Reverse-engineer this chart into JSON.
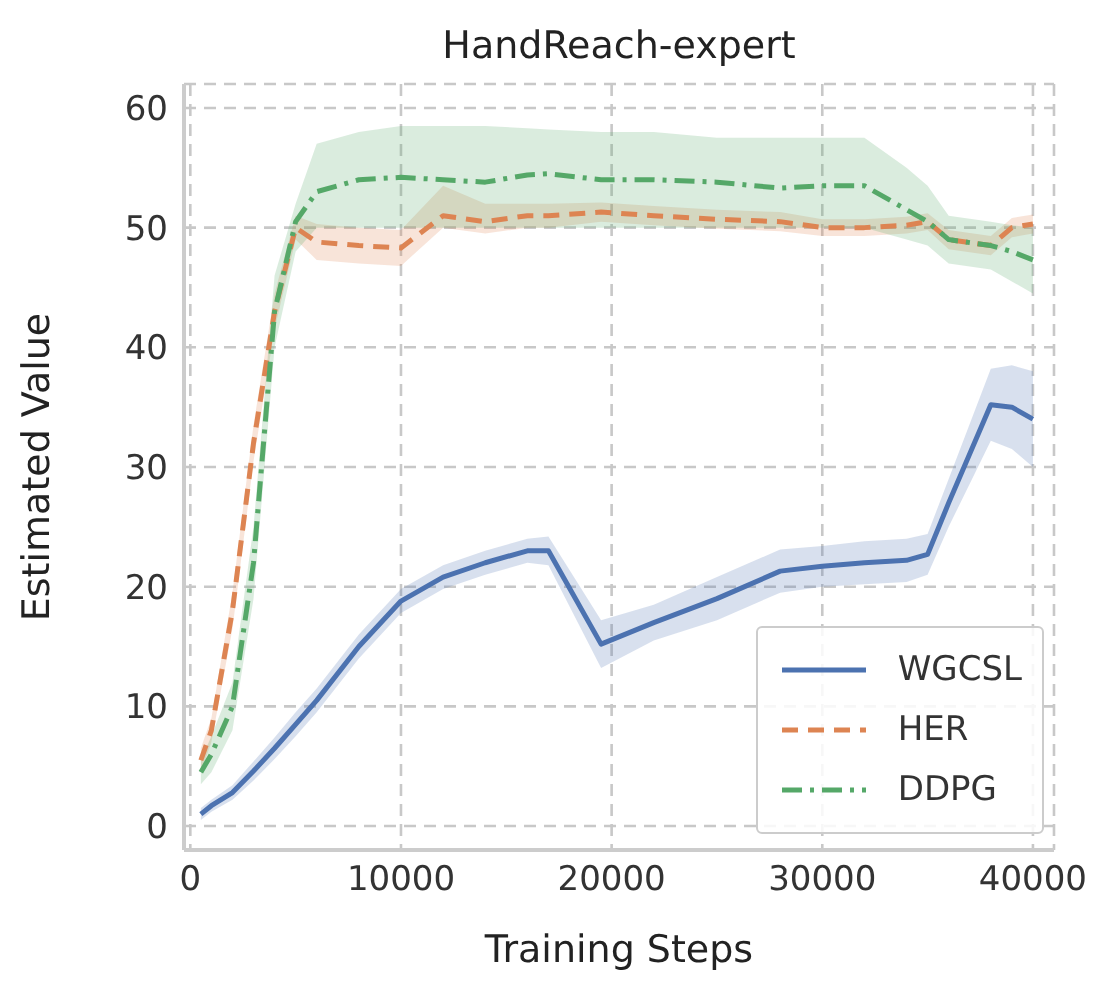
{
  "chart_data": {
    "type": "line",
    "title": "HandReach-expert",
    "xlabel": "Training Steps",
    "ylabel": "Estimated Value",
    "x": [
      500,
      1000,
      2000,
      3000,
      4000,
      5000,
      6000,
      8000,
      10000,
      12000,
      14000,
      16000,
      17000,
      19500,
      22000,
      25000,
      28000,
      30000,
      32000,
      34000,
      35000,
      36000,
      38000,
      39000,
      40000
    ],
    "series": [
      {
        "name": "WGCSL",
        "color": "#4c72b0",
        "line_style": "solid",
        "values": [
          1,
          1.7,
          2.8,
          4.6,
          6.5,
          8.5,
          10.5,
          15,
          18.8,
          20.8,
          22,
          23,
          23,
          15.2,
          17,
          19,
          21.3,
          21.7,
          22,
          22.2,
          22.7,
          27,
          35.2,
          35,
          34
        ],
        "lower": [
          0.5,
          1.2,
          2.2,
          3.8,
          5.6,
          7.5,
          9.5,
          14,
          17.8,
          19.8,
          21,
          22,
          21.8,
          13.2,
          15.5,
          17.2,
          19.5,
          20,
          20.2,
          20.4,
          21,
          25,
          32.2,
          31.5,
          30
        ],
        "upper": [
          1.5,
          2.2,
          3.4,
          5.4,
          7.4,
          9.5,
          11.5,
          16,
          19.8,
          21.8,
          23,
          24,
          24.2,
          17.2,
          18.5,
          20.8,
          23.1,
          23.4,
          23.8,
          24,
          24.4,
          29,
          38.2,
          38.5,
          38
        ]
      },
      {
        "name": "HER",
        "color": "#dd8452",
        "line_style": "dashed",
        "values": [
          5.5,
          8,
          18,
          32,
          43,
          50,
          48.8,
          48.5,
          48.3,
          51,
          50.5,
          51,
          51,
          51.3,
          51,
          50.7,
          50.5,
          50,
          50,
          50.2,
          50.5,
          49,
          48.5,
          50,
          50.3
        ],
        "lower": [
          4.5,
          7,
          16.5,
          30.5,
          41.5,
          49,
          47.3,
          47,
          46.8,
          50,
          49.5,
          50,
          50,
          50.5,
          50.2,
          49.9,
          49.7,
          49.3,
          49.3,
          49.5,
          49.8,
          48.2,
          47.7,
          49.2,
          49.5
        ],
        "upper": [
          6.5,
          9,
          19.5,
          33.5,
          44.5,
          51,
          50.3,
          50,
          49.8,
          53.5,
          52,
          52,
          52,
          52.1,
          51.8,
          51.5,
          51.3,
          50.7,
          50.7,
          50.9,
          51.2,
          49.8,
          49.3,
          50.8,
          51.1
        ]
      },
      {
        "name": "DDPG",
        "color": "#55a868",
        "line_style": "dashdot",
        "values": [
          4.5,
          6,
          10,
          22,
          43,
          50.5,
          53,
          54,
          54.2,
          54,
          53.8,
          54.4,
          54.5,
          54,
          54,
          53.8,
          53.3,
          53.5,
          53.5,
          51.5,
          50.5,
          49,
          48.5,
          48,
          47.3
        ],
        "lower": [
          3.5,
          4.5,
          8,
          19,
          40,
          48,
          50,
          50,
          50,
          50,
          50,
          50,
          50,
          50,
          50,
          50,
          50,
          50,
          50,
          49,
          48.5,
          47,
          46.5,
          45.5,
          44.5
        ],
        "upper": [
          5.5,
          7.5,
          12,
          25,
          46,
          52,
          57,
          58,
          58.5,
          58.5,
          58.5,
          58.3,
          58.2,
          58,
          58,
          57.5,
          57.5,
          57.5,
          57.5,
          55,
          53.5,
          51,
          50.5,
          50.2,
          50
        ]
      }
    ],
    "xlim": [
      -300,
      41000
    ],
    "xticks": [
      0,
      10000,
      20000,
      30000,
      40000
    ],
    "ylim": [
      -2,
      62
    ],
    "yticks": [
      0,
      10,
      20,
      30,
      40,
      50,
      60
    ],
    "grid": true,
    "legend": "bottom right",
    "marker": "none"
  }
}
